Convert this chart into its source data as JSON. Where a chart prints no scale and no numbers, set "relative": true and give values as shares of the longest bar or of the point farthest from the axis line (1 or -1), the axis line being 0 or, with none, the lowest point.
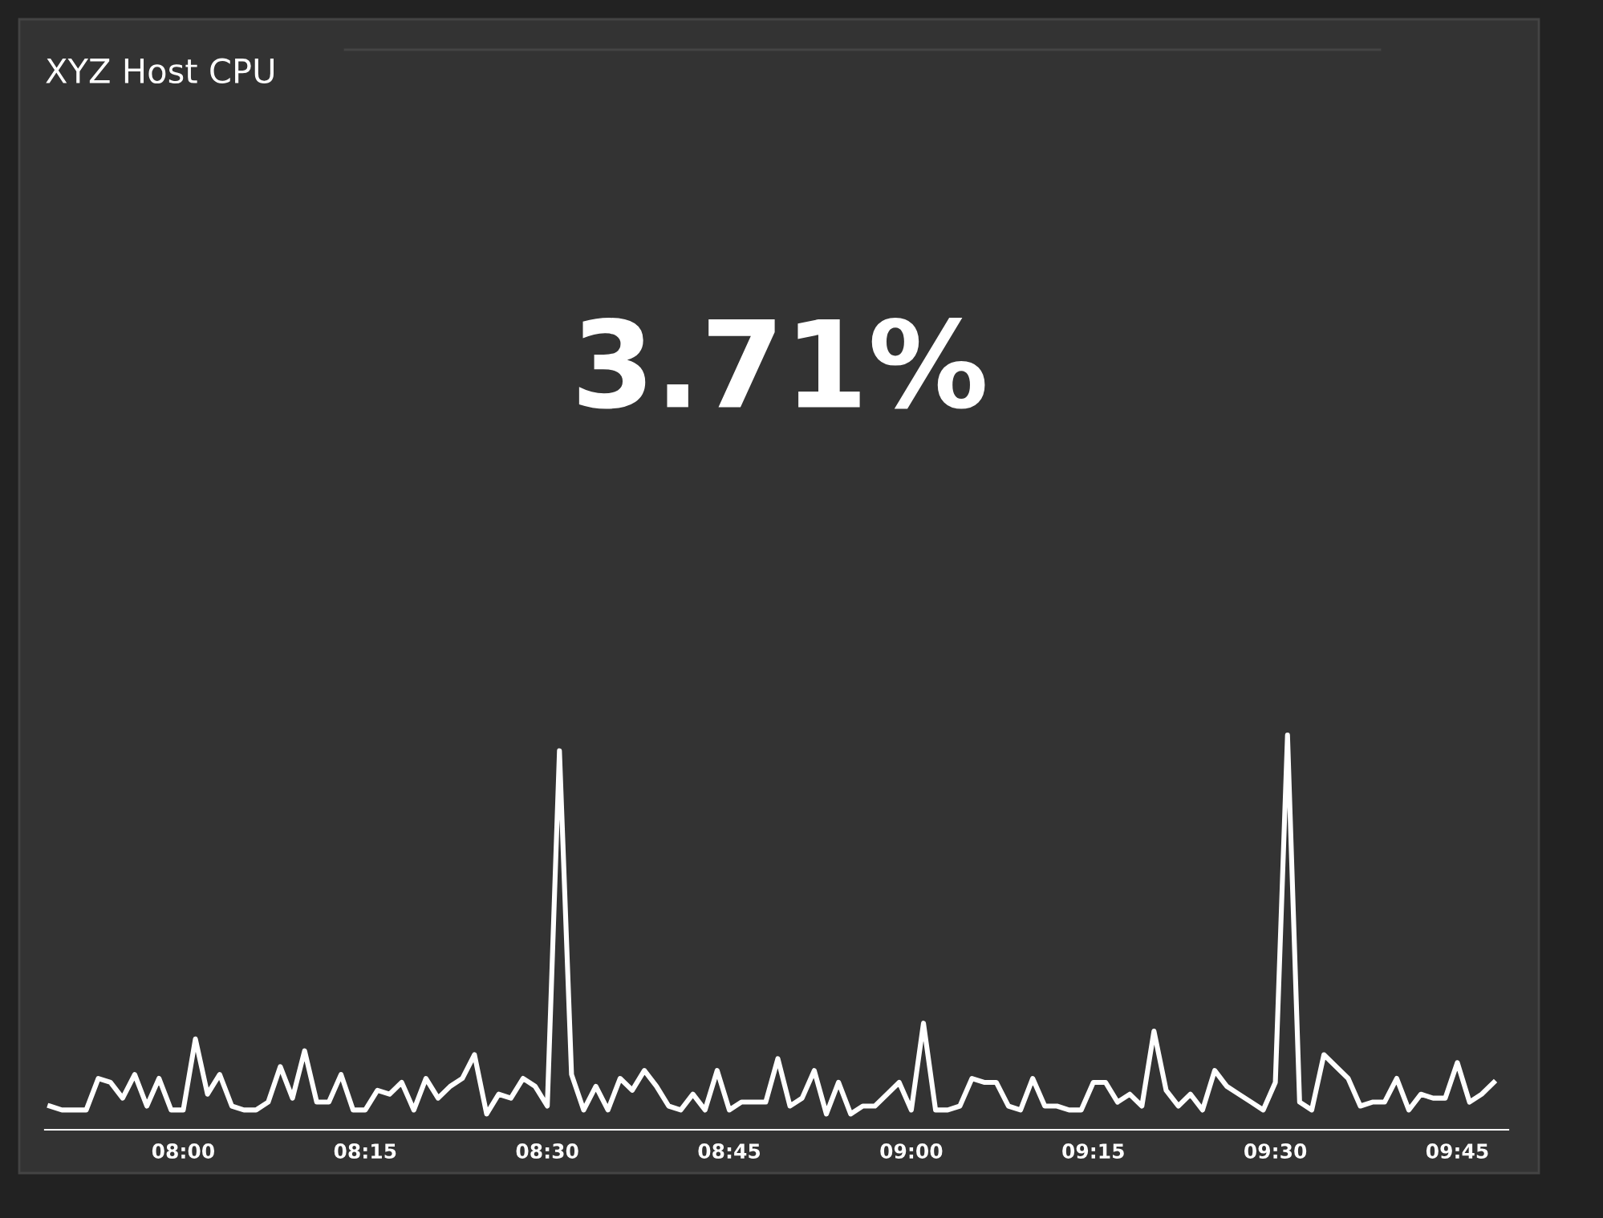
{
  "chart_data": {
    "type": "line",
    "title": "XYZ Host CPU",
    "annotations": [
      "3.71%"
    ],
    "relative": true,
    "x": [
      7.8167,
      7.8333,
      7.8667,
      7.8833,
      7.9,
      7.9167,
      7.9333,
      7.95,
      7.9667,
      7.9833,
      8,
      8.0167,
      8.0333,
      8.05,
      8.0667,
      8.0833,
      8.1,
      8.1167,
      8.1333,
      8.15,
      8.1667,
      8.1833,
      8.2,
      8.2167,
      8.2333,
      8.25,
      8.2667,
      8.2833,
      8.3,
      8.3167,
      8.3333,
      8.35,
      8.3667,
      8.3833,
      8.4,
      8.4167,
      8.4333,
      8.45,
      8.4667,
      8.4833,
      8.5,
      8.5167,
      8.5333,
      8.55,
      8.5667,
      8.5833,
      8.6,
      8.6167,
      8.6333,
      8.65,
      8.6667,
      8.6833,
      8.7,
      8.7167,
      8.7333,
      8.75,
      8.7667,
      8.8,
      8.8167,
      8.8333,
      8.85,
      8.8667,
      8.8833,
      8.9,
      8.9167,
      8.9333,
      8.95,
      8.9667,
      8.9833,
      9,
      9.0167,
      9.0333,
      9.05,
      9.0667,
      9.0833,
      9.1,
      9.1167,
      9.1333,
      9.15,
      9.1667,
      9.1833,
      9.2,
      9.2167,
      9.2333,
      9.25,
      9.2667,
      9.2833,
      9.3,
      9.3167,
      9.3333,
      9.35,
      9.3667,
      9.3833,
      9.4,
      9.4167,
      9.4333,
      9.45,
      9.4667,
      9.4833,
      9.5,
      9.5167,
      9.5333,
      9.55,
      9.5667,
      9.5833,
      9.6,
      9.6167,
      9.6333,
      9.65,
      9.6667,
      9.6833,
      9.7,
      9.7167,
      9.7333,
      9.75,
      9.7667,
      9.7833,
      9.8
    ],
    "series": [
      {
        "color": "#ffffff",
        "values": [
          0.06,
          0.05,
          0.05,
          0.13,
          0.12,
          0.08,
          0.14,
          0.06,
          0.13,
          0.05,
          0.05,
          0.23,
          0.09,
          0.14,
          0.06,
          0.05,
          0.05,
          0.07,
          0.16,
          0.08,
          0.2,
          0.07,
          0.07,
          0.14,
          0.05,
          0.05,
          0.1,
          0.09,
          0.12,
          0.05,
          0.13,
          0.08,
          0.11,
          0.13,
          0.19,
          0.04,
          0.09,
          0.08,
          0.13,
          0.11,
          0.06,
          0.96,
          0.14,
          0.05,
          0.11,
          0.05,
          0.13,
          0.1,
          0.15,
          0.11,
          0.06,
          0.05,
          0.09,
          0.05,
          0.15,
          0.05,
          0.07,
          0.07,
          0.18,
          0.06,
          0.08,
          0.15,
          0.04,
          0.12,
          0.04,
          0.06,
          0.06,
          0.09,
          0.12,
          0.05,
          0.27,
          0.05,
          0.05,
          0.06,
          0.13,
          0.12,
          0.12,
          0.06,
          0.05,
          0.13,
          0.06,
          0.06,
          0.05,
          0.05,
          0.12,
          0.12,
          0.07,
          0.09,
          0.06,
          0.25,
          0.1,
          0.06,
          0.09,
          0.05,
          0.15,
          0.11,
          0.09,
          0.07,
          0.05,
          0.12,
          1.0,
          0.07,
          0.05,
          0.19,
          0.16,
          0.13,
          0.06,
          0.07,
          0.07,
          0.13,
          0.05,
          0.09,
          0.08,
          0.08,
          0.17,
          0.07,
          0.09,
          0.12
        ]
      }
    ],
    "xlim": [
      7.81,
      9.82
    ],
    "xticks": [
      {
        "value": 8,
        "label": "08:00"
      },
      {
        "value": 8.25,
        "label": "08:15"
      },
      {
        "value": 8.5,
        "label": "08:30"
      },
      {
        "value": 8.75,
        "label": "08:45"
      },
      {
        "value": 9,
        "label": "09:00"
      },
      {
        "value": 9.25,
        "label": "09:15"
      },
      {
        "value": 9.5,
        "label": "09:30"
      },
      {
        "value": 9.75,
        "label": "09:45"
      }
    ],
    "tick_labels": "x",
    "grid": false,
    "legend": false,
    "marker": "none",
    "line_style": "solid"
  }
}
